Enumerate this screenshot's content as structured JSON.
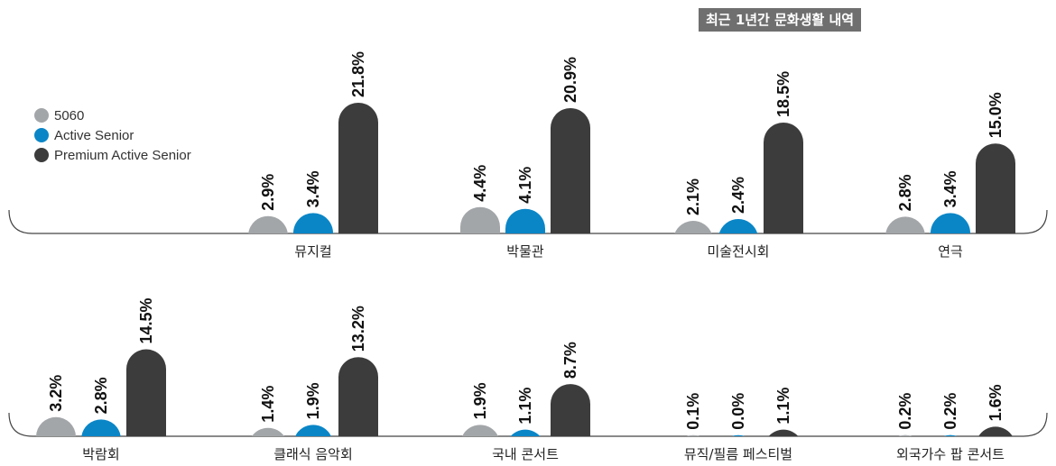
{
  "title": "최근 1년간 문화생활 내역",
  "colors": {
    "title_bg": "#6f6f6f",
    "baseline": "#444444"
  },
  "chart_data": {
    "type": "bar",
    "unit": "%",
    "ylim": [
      0,
      22
    ],
    "series": [
      {
        "name": "5060",
        "color": "#a3a6a9"
      },
      {
        "name": "Active Senior",
        "color": "#0a86c7"
      },
      {
        "name": "Premium Active Senior",
        "color": "#3c3c3c"
      }
    ],
    "categories": [
      "뮤지컬",
      "박물관",
      "미술전시회",
      "연극",
      "박람회",
      "클래식 음악회",
      "국내 콘서트",
      "뮤직/필름 페스티벌",
      "외국가수 팝 콘서트"
    ],
    "values": [
      [
        2.9,
        3.4,
        21.8
      ],
      [
        4.4,
        4.1,
        20.9
      ],
      [
        2.1,
        2.4,
        18.5
      ],
      [
        2.8,
        3.4,
        15.0
      ],
      [
        3.2,
        2.8,
        14.5
      ],
      [
        1.4,
        1.9,
        13.2
      ],
      [
        1.9,
        1.1,
        8.7
      ],
      [
        0.1,
        0.0,
        1.1
      ],
      [
        0.2,
        0.2,
        1.6
      ]
    ],
    "value_labels": [
      [
        "2.9%",
        "3.4%",
        "21.8%"
      ],
      [
        "4.4%",
        "4.1%",
        "20.9%"
      ],
      [
        "2.1%",
        "2.4%",
        "18.5%"
      ],
      [
        "2.8%",
        "3.4%",
        "15.0%"
      ],
      [
        "3.2%",
        "2.8%",
        "14.5%"
      ],
      [
        "1.4%",
        "1.9%",
        "13.2%"
      ],
      [
        "1.9%",
        "1.1%",
        "8.7%"
      ],
      [
        "0.1%",
        "0.0%",
        "1.1%"
      ],
      [
        "0.2%",
        "0.2%",
        "1.6%"
      ]
    ],
    "legend_position": "left",
    "grid": false
  }
}
